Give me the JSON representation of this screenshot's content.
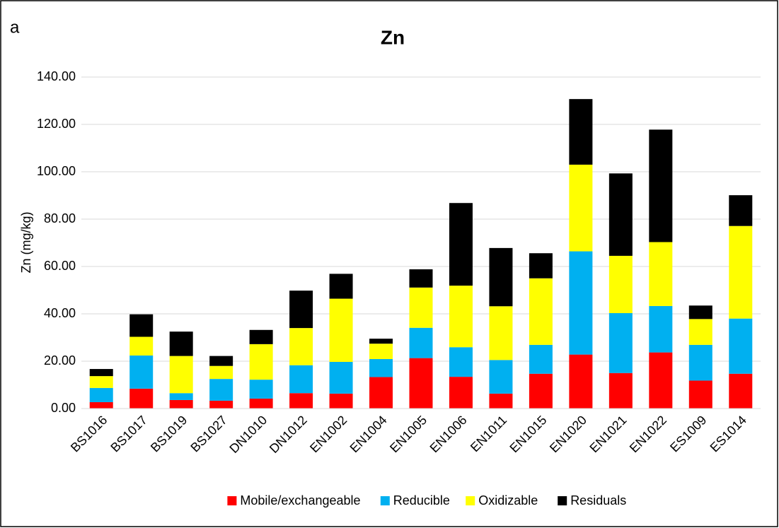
{
  "chart_data": {
    "type": "stacked_bar",
    "panel_label": "a",
    "title": "Zn",
    "y_label": "Zn (mg/kg)",
    "categories": [
      "BS1016",
      "BS1017",
      "BS1019",
      "BS1027",
      "DN1010",
      "DN1012",
      "EN1002",
      "EN1004",
      "EN1005",
      "EN1006",
      "EN1011",
      "EN1015",
      "EN1020",
      "EN1021",
      "EN1022",
      "ES1009",
      "ES1014"
    ],
    "series": [
      {
        "name": "Mobile/exchangeable",
        "color": "#ff0000",
        "values": [
          2.7,
          8.4,
          3.6,
          3.3,
          4.2,
          6.5,
          6.3,
          13.3,
          21.3,
          13.4,
          6.3,
          14.7,
          22.8,
          15.0,
          23.7,
          11.8,
          14.7
        ]
      },
      {
        "name": "Reducible",
        "color": "#00b0f0",
        "values": [
          6.0,
          14.0,
          2.9,
          9.2,
          8.0,
          11.8,
          13.4,
          7.6,
          12.8,
          12.5,
          14.2,
          12.2,
          43.6,
          25.3,
          19.6,
          15.1,
          23.3
        ]
      },
      {
        "name": "Oxidizable",
        "color": "#ffff00",
        "values": [
          5.0,
          7.9,
          15.7,
          5.5,
          15.0,
          15.7,
          26.7,
          6.5,
          17.0,
          26.0,
          22.7,
          28.1,
          36.6,
          24.2,
          27.0,
          10.9,
          39.1
        ]
      },
      {
        "name": "Residuals",
        "color": "#000000",
        "values": [
          3.0,
          9.5,
          10.3,
          4.2,
          6.0,
          15.8,
          10.5,
          2.1,
          7.7,
          34.9,
          24.6,
          10.6,
          27.7,
          34.8,
          47.5,
          5.7,
          13.0
        ]
      }
    ],
    "ylim": [
      0,
      140
    ],
    "yticks": [
      {
        "value": 0,
        "label": "0.00"
      },
      {
        "value": 20,
        "label": "20.00"
      },
      {
        "value": 40,
        "label": "40.00"
      },
      {
        "value": 60,
        "label": "60.00"
      },
      {
        "value": 80,
        "label": "80.00"
      },
      {
        "value": 100,
        "label": "100.00"
      },
      {
        "value": 120,
        "label": "120.00"
      },
      {
        "value": 140,
        "label": "140.00"
      }
    ],
    "grid": true,
    "legend": "bottom"
  }
}
